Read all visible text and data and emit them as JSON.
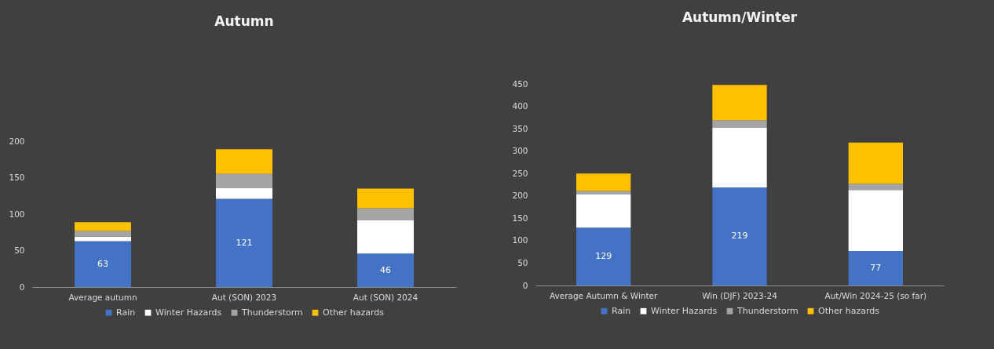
{
  "chart_data": [
    {
      "type": "bar",
      "title": "Autumn",
      "categories": [
        "Average autumn",
        "Aut (SON) 2023",
        "Aut (SON) 2024"
      ],
      "stacked": true,
      "legend": "bottom",
      "ylim": [
        0,
        200
      ],
      "yticks": [
        0,
        50,
        100,
        150,
        200
      ],
      "series": [
        {
          "name": "Rain",
          "color": "#4472c4",
          "values": [
            63,
            121,
            46
          ],
          "value_labels": [
            "63",
            "121",
            "46"
          ]
        },
        {
          "name": "Winter Hazards",
          "color": "#ffffff",
          "values": [
            6,
            15,
            46
          ]
        },
        {
          "name": "Thunderstorm",
          "color": "#a5a5a5",
          "values": [
            8,
            19,
            16
          ]
        },
        {
          "name": "Other hazards",
          "color": "#ffc000",
          "values": [
            12,
            34,
            27
          ]
        }
      ]
    },
    {
      "type": "bar",
      "title": "Autumn/Winter",
      "categories": [
        "Average Autumn & Winter",
        "Win (DJF) 2023-24",
        "Aut/Win 2024-25 (so far)"
      ],
      "stacked": true,
      "legend": "bottom",
      "ylim": [
        0,
        450
      ],
      "yticks": [
        0,
        50,
        100,
        150,
        200,
        250,
        300,
        350,
        400,
        450
      ],
      "series": [
        {
          "name": "Rain",
          "color": "#4472c4",
          "values": [
            129,
            219,
            77
          ],
          "value_labels": [
            "129",
            "219",
            "77"
          ]
        },
        {
          "name": "Winter Hazards",
          "color": "#ffffff",
          "values": [
            74,
            133,
            136
          ]
        },
        {
          "name": "Thunderstorm",
          "color": "#a5a5a5",
          "values": [
            8,
            17,
            14
          ]
        },
        {
          "name": "Other hazards",
          "color": "#ffc000",
          "values": [
            39,
            79,
            92
          ]
        }
      ]
    }
  ]
}
